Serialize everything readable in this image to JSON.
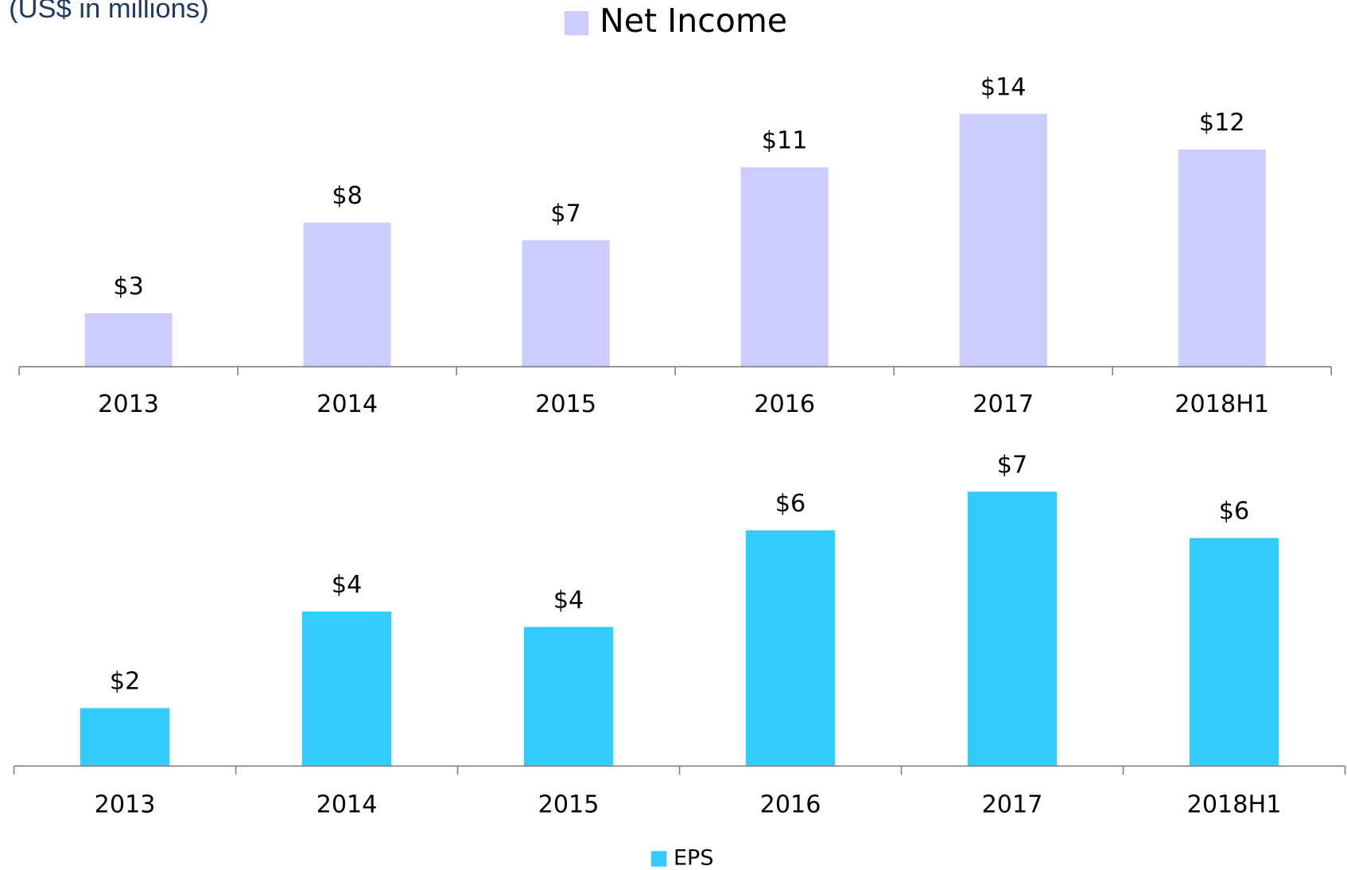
{
  "chart_data": [
    {
      "type": "bar",
      "subtitle": "(US$ in millions)",
      "categories": [
        "2013",
        "2014",
        "2015",
        "2016",
        "2017",
        "2018H1"
      ],
      "series": [
        {
          "name": "Net Income",
          "color": "#ccccff",
          "values": [
            3.0,
            8.1,
            7.1,
            11.2,
            14.2,
            12.2
          ],
          "value_labels": [
            "$3",
            "$8",
            "$7",
            "$11",
            "$14",
            "$12"
          ]
        }
      ],
      "ylim": [
        0,
        15
      ],
      "legend": "top"
    },
    {
      "type": "bar",
      "categories": [
        "2013",
        "2014",
        "2015",
        "2016",
        "2017",
        "2018H1"
      ],
      "series": [
        {
          "name": "EPS",
          "color": "#33ccff",
          "values": [
            1.5,
            4.0,
            3.6,
            6.1,
            7.1,
            5.9
          ],
          "value_labels": [
            "$2",
            "$4",
            "$4",
            "$6",
            "$7",
            "$6"
          ]
        }
      ],
      "ylim": [
        0,
        8
      ],
      "legend": "bottom"
    }
  ]
}
